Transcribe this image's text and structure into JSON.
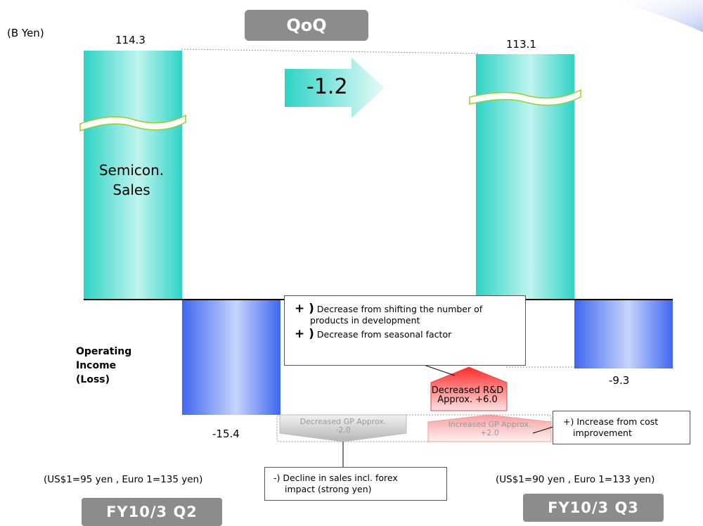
{
  "unit_label": "(B Yen)",
  "qoq_label": "QoQ",
  "delta_label": "-1.2",
  "sales_label_line1": "Semicon.",
  "sales_label_line2": "Sales",
  "operating_label_line1": "Operating",
  "operating_label_line2": "Income",
  "operating_label_line3": "(Loss)",
  "periods": {
    "q2": {
      "label": "FY10/3 Q2",
      "rate": "(US$1=95 yen , Euro 1=135 yen)"
    },
    "q3": {
      "label": "FY10/3 Q3",
      "rate": "(US$1=90 yen , Euro 1=133 yen)"
    }
  },
  "callouts": {
    "rd": {
      "paren1": "+ )",
      "line1a": "Decrease from shifting the number of",
      "line1b": "products in development",
      "paren2": "+ )",
      "line2": "Decrease from seasonal factor"
    },
    "cost": {
      "line1": "+) Increase from cost",
      "line2": "improvement"
    },
    "sales": {
      "line1": "-) Decline in sales incl. forex",
      "line2": "impact (strong yen)"
    }
  },
  "chart_data": {
    "type": "bar",
    "unit": "(B Yen)",
    "categories": [
      "FY10/3 Q2",
      "FY10/3 Q3"
    ],
    "series": [
      {
        "name": "Semicon. Sales",
        "values": [
          114.3,
          113.1
        ],
        "color": "#2fd3c6"
      },
      {
        "name": "Operating Income (Loss)",
        "values": [
          -15.4,
          -9.3
        ],
        "color": "#3f67f0"
      }
    ],
    "value_labels": {
      "sales": [
        "114.3",
        "113.1"
      ],
      "operating": [
        "-15.4",
        "-9.3"
      ]
    },
    "qoq_change": -1.2,
    "bridge": [
      {
        "label_line1": "Decreased GP Approx.",
        "label_line2": "-2.0",
        "value": -2.0,
        "color": "#c8c8c8"
      },
      {
        "label_line1": "Decreased R&D",
        "label_line2": "Approx. +6.0",
        "value": 6.0,
        "color": "#ff3b3b"
      },
      {
        "label_line1": "Increased GP Approx.",
        "label_line2": "+2.0",
        "value": 2.0,
        "color": "#f7b3b3"
      }
    ],
    "axis_break": true,
    "grid": false
  }
}
